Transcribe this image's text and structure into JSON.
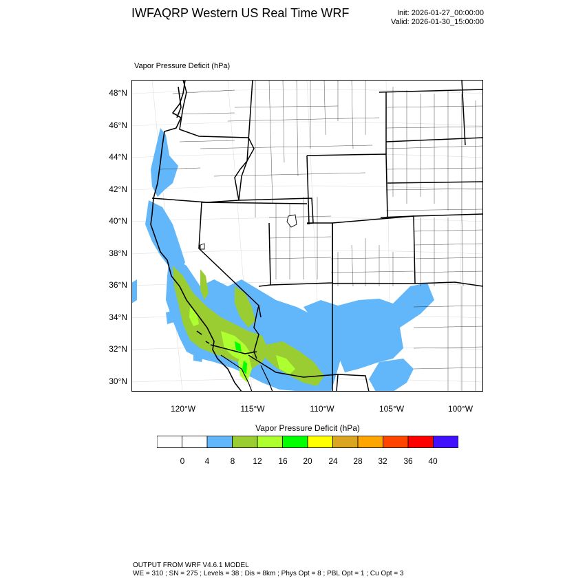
{
  "header": {
    "title": "IWFAQRP Western US Real Time WRF",
    "init": "Init: 2026-01-27_00:00:00",
    "valid": "Valid: 2026-01-30_15:00:00"
  },
  "field_label": "Vapor Pressure Deficit   (hPa)",
  "map": {
    "lat_labels": [
      "48°N",
      "46°N",
      "44°N",
      "42°N",
      "40°N",
      "38°N",
      "36°N",
      "34°N",
      "32°N",
      "30°N"
    ],
    "lon_labels": [
      "120°W",
      "115°W",
      "110°W",
      "105°W",
      "100°W"
    ],
    "colors": {
      "ocean_boundary": "#000000",
      "vpd_4_8": "#62b6fa",
      "vpd_8_12": "#9acd32",
      "vpd_12_16": "#adff2f",
      "vpd_16_20": "#00ff00"
    }
  },
  "legend": {
    "title": "Vapor Pressure Deficit  (hPa)",
    "tick_labels": [
      "0",
      "4",
      "8",
      "12",
      "16",
      "20",
      "24",
      "28",
      "32",
      "36",
      "40"
    ],
    "bin_colors": [
      "#ffffff",
      "#ffffff",
      "#62b6fa",
      "#9acd32",
      "#adff2f",
      "#00ff00",
      "#ffff00",
      "#daa520",
      "#ffa500",
      "#ff4500",
      "#ff0000",
      "#4010ff"
    ]
  },
  "footer": {
    "line1": "OUTPUT FROM WRF V4.6.1 MODEL",
    "line2": "WE = 310 ; SN = 275 ; Levels = 38 ; Dis = 8km ; Phys Opt = 8 ; PBL Opt = 1 ; Cu Opt = 3"
  }
}
